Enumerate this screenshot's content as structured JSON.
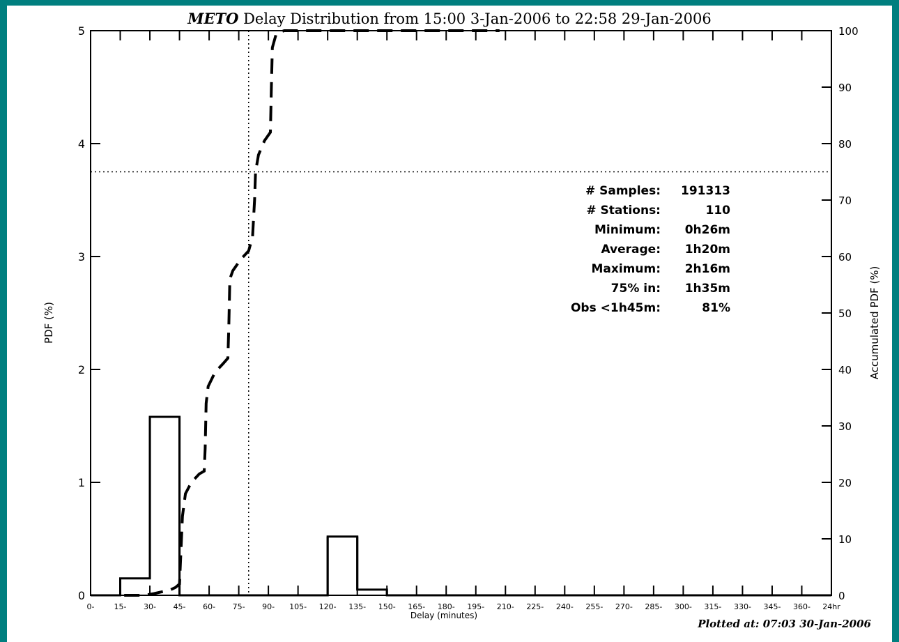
{
  "chart_data": {
    "type": "bar",
    "title_station": "METO",
    "title_rest": " Delay Distribution from 15:00 3-Jan-2006 to 22:58 29-Jan-2006",
    "xlabel": "Delay (minutes)",
    "ylabel_left": "PDF (%)",
    "ylabel_right": "Accumulated PDF (%)",
    "x_tick_labels": [
      "0-",
      "15-",
      "30-",
      "45-",
      "60-",
      "75-",
      "90-",
      "105-",
      "120-",
      "135-",
      "150-",
      "165-",
      "180-",
      "195-",
      "210-",
      "225-",
      "240-",
      "255-",
      "270-",
      "285-",
      "300-",
      "315-",
      "330-",
      "345-",
      "360-",
      "24hr"
    ],
    "ylim_left": [
      0,
      5
    ],
    "y_ticks_left": [
      "0",
      "1",
      "2",
      "3",
      "4",
      "5"
    ],
    "ylim_right": [
      0,
      100
    ],
    "y_ticks_right": [
      "0",
      "10",
      "20",
      "30",
      "40",
      "50",
      "60",
      "70",
      "80",
      "90",
      "100"
    ],
    "series": [
      {
        "style": "histogram",
        "values": [
          0,
          0.15,
          1.58,
          0,
          0,
          0,
          0,
          0,
          0.52,
          0.05,
          0,
          0,
          0,
          0,
          0,
          0,
          0,
          0,
          0,
          0,
          0,
          0,
          0,
          0,
          0
        ]
      },
      {
        "style": "dashed-cumulative",
        "points": [
          [
            17,
            0
          ],
          [
            27,
            0
          ],
          [
            32,
            0.3
          ],
          [
            36,
            0.6
          ],
          [
            40,
            0.9
          ],
          [
            43,
            1.4
          ],
          [
            45,
            2.0
          ],
          [
            45.5,
            6
          ],
          [
            46.5,
            14
          ],
          [
            48,
            18
          ],
          [
            51,
            20
          ],
          [
            55,
            21.5
          ],
          [
            57.5,
            22
          ],
          [
            58,
            26
          ],
          [
            58.5,
            34
          ],
          [
            59.5,
            37
          ],
          [
            63,
            39.5
          ],
          [
            67,
            41
          ],
          [
            69.5,
            42
          ],
          [
            70,
            48
          ],
          [
            70.5,
            56
          ],
          [
            72,
            57.5
          ],
          [
            76,
            59.5
          ],
          [
            80,
            61
          ],
          [
            82,
            63.5
          ],
          [
            83,
            70
          ],
          [
            83.5,
            75
          ],
          [
            85,
            78
          ],
          [
            88,
            80.5
          ],
          [
            90,
            81.5
          ],
          [
            91,
            82
          ],
          [
            91.5,
            90
          ],
          [
            92,
            97
          ],
          [
            94,
            99.5
          ],
          [
            98,
            100
          ],
          [
            207,
            100
          ]
        ]
      }
    ],
    "markers": {
      "vline_x": 80,
      "hline_y_right": 75
    },
    "stats": [
      {
        "label": "# Samples:",
        "value": "191313"
      },
      {
        "label": "# Stations:",
        "value": "110"
      },
      {
        "label": "Minimum:",
        "value": "0h26m"
      },
      {
        "label": "Average:",
        "value": "1h20m"
      },
      {
        "label": "Maximum:",
        "value": "2h16m"
      },
      {
        "label": "75% in:",
        "value": "1h35m"
      },
      {
        "label": "Obs <1h45m:",
        "value": "81%"
      }
    ],
    "plotted_at": "Plotted at: 07:03 30-Jan-2006"
  }
}
